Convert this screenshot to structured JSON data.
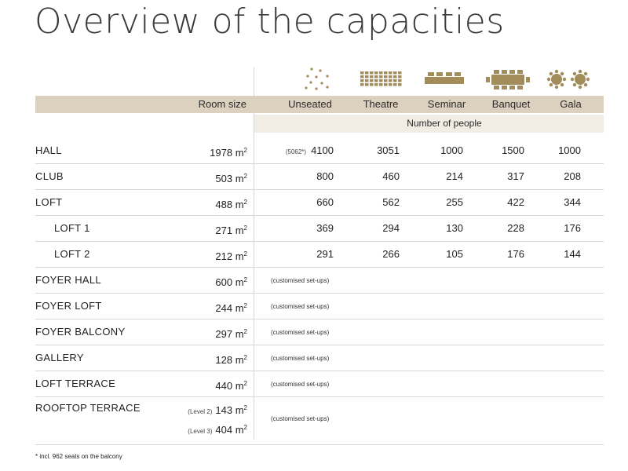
{
  "title": "Overview of the capacities",
  "headers": {
    "room_size": "Room size",
    "unseated": "Unseated",
    "theatre": "Theatre",
    "seminar": "Seminar",
    "banquet": "Banquet",
    "gala": "Gala",
    "number_of_people": "Number of people"
  },
  "icons": [
    "unseated-icon",
    "theatre-icon",
    "seminar-icon",
    "banquet-icon",
    "gala-icon"
  ],
  "accent_color": "#a28d5a",
  "header_band_color": "#dcd1bf",
  "rows": [
    {
      "name": "HALL",
      "size": "1978 m",
      "unseated_prefix": "(5062*)",
      "unseated": "4100",
      "theatre": "3051",
      "seminar": "1000",
      "banquet": "1500",
      "gala": "1000"
    },
    {
      "name": "CLUB",
      "size": "503 m",
      "unseated": "800",
      "theatre": "460",
      "seminar": "214",
      "banquet": "317",
      "gala": "208"
    },
    {
      "name": "LOFT",
      "size": "488 m",
      "unseated": "660",
      "theatre": "562",
      "seminar": "255",
      "banquet": "422",
      "gala": "344"
    },
    {
      "name": "LOFT 1",
      "size": "271 m",
      "unseated": "369",
      "theatre": "294",
      "seminar": "130",
      "banquet": "228",
      "gala": "176"
    },
    {
      "name": "LOFT 2",
      "size": "212 m",
      "unseated": "291",
      "theatre": "266",
      "seminar": "105",
      "banquet": "176",
      "gala": "144"
    },
    {
      "name": "FOYER HALL",
      "size": "600 m",
      "note": "(customised set-ups)"
    },
    {
      "name": "FOYER LOFT",
      "size": "244 m",
      "note": "(customised set-ups)"
    },
    {
      "name": "FOYER BALCONY",
      "size": "297 m",
      "note": "(customised set-ups)"
    },
    {
      "name": "GALLERY",
      "size": "128 m",
      "note": "(customised set-ups)"
    },
    {
      "name": "LOFT TERRACE",
      "size": "440 m",
      "note": "(customised set-ups)"
    },
    {
      "name": "ROOFTOP TERRACE",
      "level1": "(Level 2)",
      "size1": "143 m",
      "level2": "(Level 3)",
      "size2": "404 m",
      "note": "(customised set-ups)"
    }
  ],
  "sup": "2",
  "footnote": "* incl. 962 seats on the balcony"
}
